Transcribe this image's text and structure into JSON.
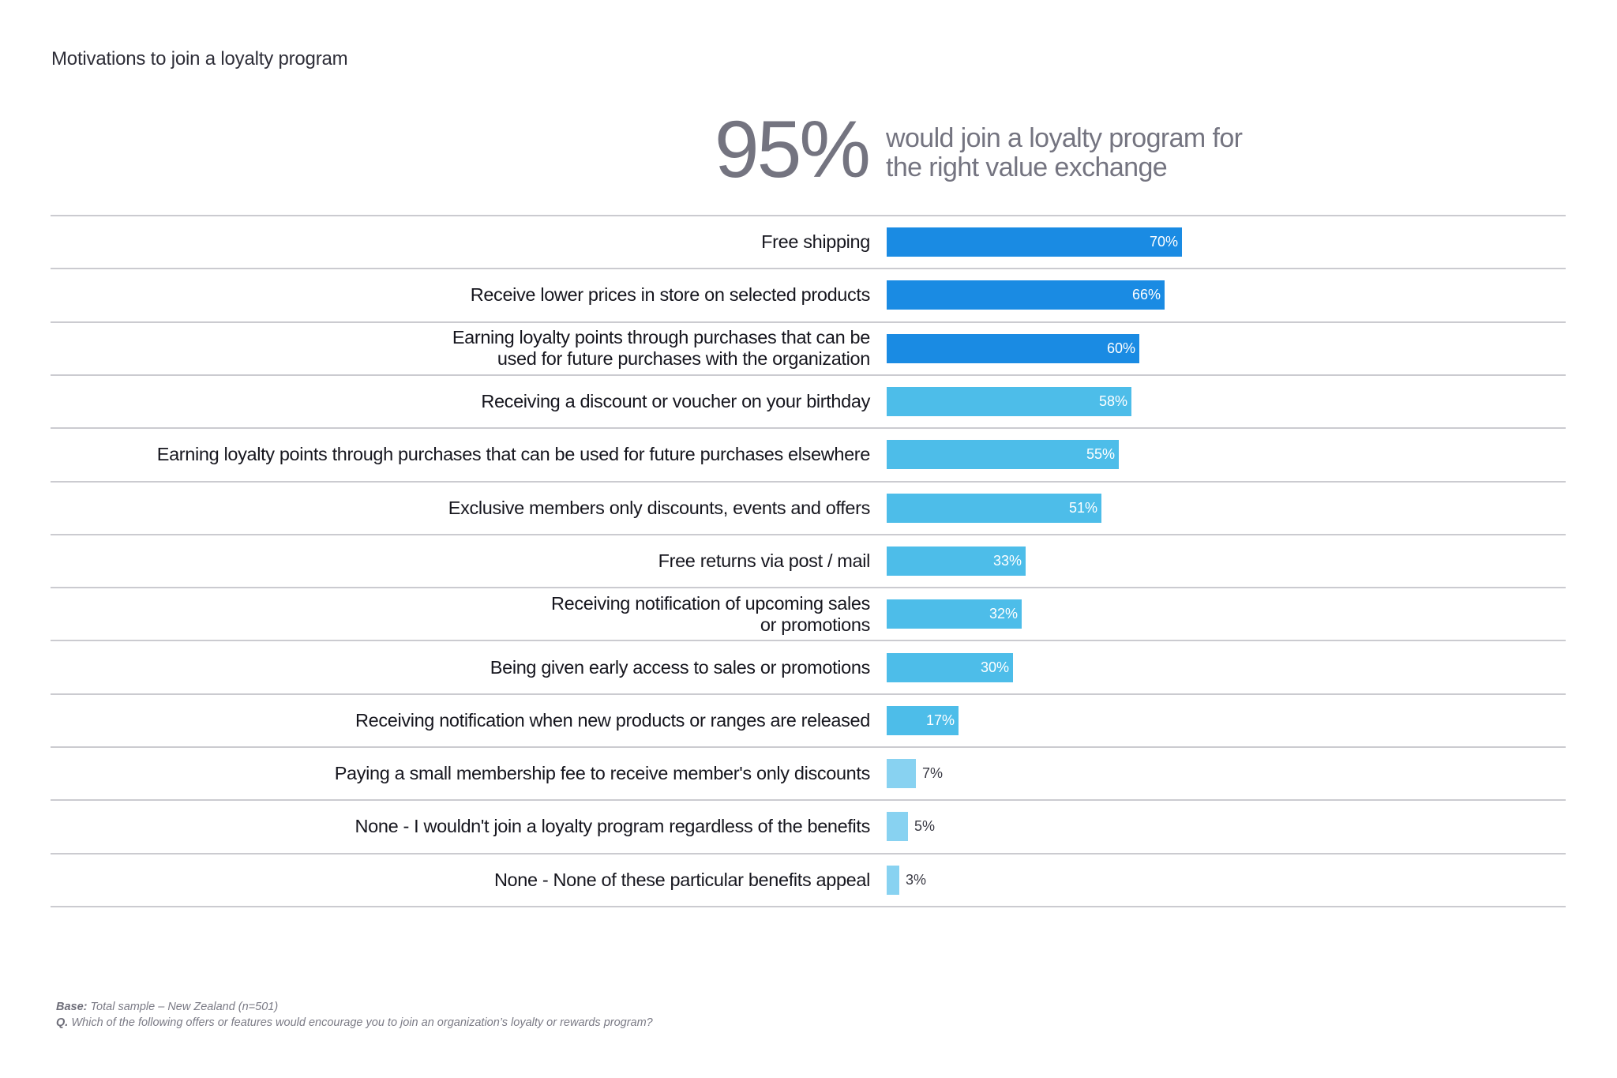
{
  "page": {
    "title": "Motivations to join a loyalty program"
  },
  "headline": {
    "stat": "95%",
    "text_line1": "would join a loyalty program for",
    "text_line2": "the right value exchange"
  },
  "colors": {
    "dark_blue": "#1a8be3",
    "medium_blue": "#4dbde9",
    "light_blue": "#88d2f1",
    "divider": "#cbcbd0",
    "stat_gray": "#747480"
  },
  "footnote": {
    "base_prefix": "Base:",
    "base_text": " Total sample – New Zealand (n=501)",
    "question_prefix": "Q.",
    "question_text": " Which of the following offers or features would encourage you to join an organization’s loyalty or rewards program?"
  },
  "chart_data": {
    "type": "bar",
    "orientation": "horizontal",
    "title": "Motivations to join a loyalty program",
    "xlabel": "",
    "ylabel": "",
    "xlim": [
      0,
      100
    ],
    "grid": false,
    "legend": "none",
    "value_format": "percent",
    "categories": [
      [
        "Free shipping"
      ],
      [
        "Receive lower prices in store on selected products"
      ],
      [
        "Earning loyalty points through purchases that can be",
        "used for future purchases with the organization"
      ],
      [
        "Receiving a discount or voucher on your birthday"
      ],
      [
        "Earning loyalty points through purchases that can be used for future purchases elsewhere"
      ],
      [
        "Exclusive members only discounts, events and offers"
      ],
      [
        "Free returns via post / mail"
      ],
      [
        "Receiving notification of upcoming sales",
        "or promotions"
      ],
      [
        "Being given early access to sales or promotions"
      ],
      [
        "Receiving notification when new products or ranges are released"
      ],
      [
        "Paying a small membership fee to receive member's only discounts"
      ],
      [
        "None - I wouldn't join a loyalty program regardless of the benefits"
      ],
      [
        "None - None of these particular benefits appeal"
      ]
    ],
    "values": [
      70,
      66,
      60,
      58,
      55,
      51,
      33,
      32,
      30,
      17,
      7,
      5,
      3
    ],
    "value_labels": [
      "70%",
      "66%",
      "60%",
      "58%",
      "55%",
      "51%",
      "33%",
      "32%",
      "30%",
      "17%",
      "7%",
      "5%",
      "3%"
    ],
    "bar_color_tiers": [
      "dark_blue",
      "dark_blue",
      "dark_blue",
      "medium_blue",
      "medium_blue",
      "medium_blue",
      "medium_blue",
      "medium_blue",
      "medium_blue",
      "medium_blue",
      "light_blue",
      "light_blue",
      "light_blue"
    ]
  }
}
